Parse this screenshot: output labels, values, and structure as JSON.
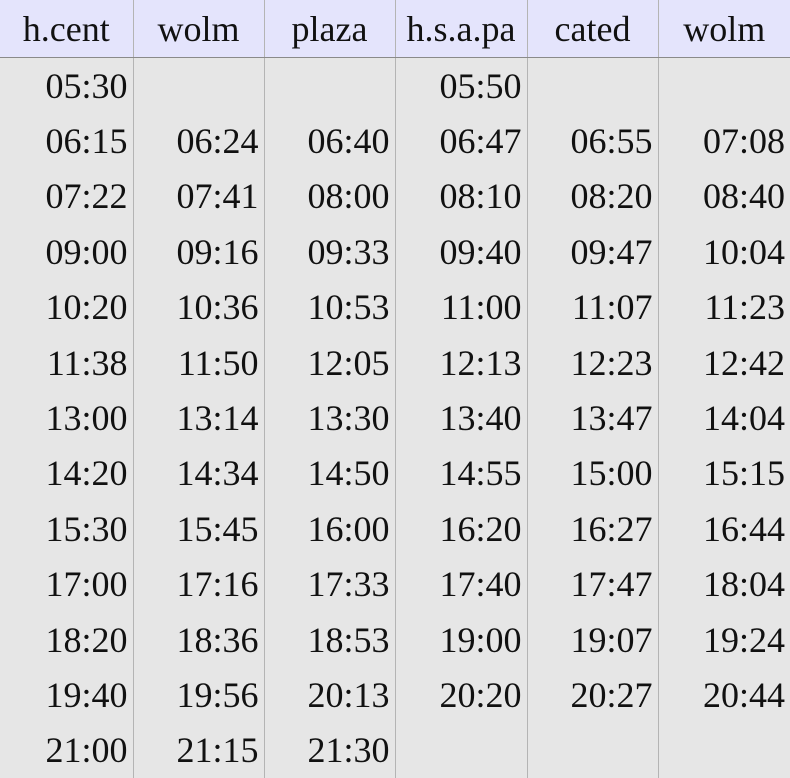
{
  "timetable": {
    "headers": [
      "h.cent",
      "wolm",
      "plaza",
      "h.s.a.pa",
      "cated",
      "wolm"
    ],
    "rows": [
      [
        "05:30",
        "",
        "",
        "05:50",
        "",
        ""
      ],
      [
        "06:15",
        "06:24",
        "06:40",
        "06:47",
        "06:55",
        "07:08"
      ],
      [
        "07:22",
        "07:41",
        "08:00",
        "08:10",
        "08:20",
        "08:40"
      ],
      [
        "09:00",
        "09:16",
        "09:33",
        "09:40",
        "09:47",
        "10:04"
      ],
      [
        "10:20",
        "10:36",
        "10:53",
        "11:00",
        "11:07",
        "11:23"
      ],
      [
        "11:38",
        "11:50",
        "12:05",
        "12:13",
        "12:23",
        "12:42"
      ],
      [
        "13:00",
        "13:14",
        "13:30",
        "13:40",
        "13:47",
        "14:04"
      ],
      [
        "14:20",
        "14:34",
        "14:50",
        "14:55",
        "15:00",
        "15:15"
      ],
      [
        "15:30",
        "15:45",
        "16:00",
        "16:20",
        "16:27",
        "16:44"
      ],
      [
        "17:00",
        "17:16",
        "17:33",
        "17:40",
        "17:47",
        "18:04"
      ],
      [
        "18:20",
        "18:36",
        "18:53",
        "19:00",
        "19:07",
        "19:24"
      ],
      [
        "19:40",
        "19:56",
        "20:13",
        "20:20",
        "20:27",
        "20:44"
      ],
      [
        "21:00",
        "21:15",
        "21:30",
        "",
        "",
        ""
      ]
    ]
  }
}
